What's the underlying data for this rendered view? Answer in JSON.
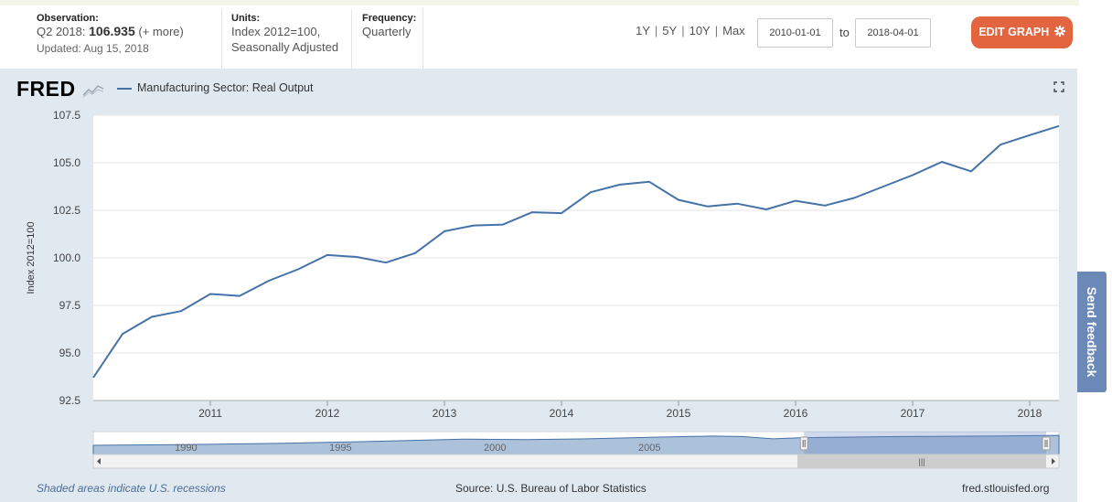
{
  "header": {
    "observation": {
      "label": "Observation:",
      "period": "Q2 2018:",
      "value": "106.935",
      "more": "(+ more)",
      "updated": "Updated: Aug 15, 2018"
    },
    "units": {
      "label": "Units:",
      "line1": "Index 2012=100,",
      "line2": "Seasonally Adjusted"
    },
    "frequency": {
      "label": "Frequency:",
      "value": "Quarterly"
    },
    "ranges": [
      "1Y",
      "5Y",
      "10Y",
      "Max"
    ],
    "date_from": "2010-01-01",
    "date_to_label": "to",
    "date_to": "2018-04-01",
    "edit_label": "EDIT GRAPH",
    "edit_icon": "gear-icon"
  },
  "logo": "FRED",
  "legend_label": "Manufacturing Sector: Real Output",
  "feedback_label": "Send feedback",
  "footer": {
    "left": "Shaded areas indicate U.S. recessions",
    "source": "Source: U.S. Bureau of Labor Statistics",
    "site": "fred.stlouisfed.org"
  },
  "colors": {
    "series": "#4572a7",
    "accent": "#e3653f",
    "panel": "#e1e9f0",
    "feedback": "#6b88b7"
  },
  "chart_data": {
    "type": "line",
    "title": "Manufacturing Sector: Real Output",
    "xlabel": "",
    "ylabel": "Index 2012=100",
    "ylim": [
      92.5,
      107.5
    ],
    "yticks": [
      "92.5",
      "95.0",
      "97.5",
      "100.0",
      "102.5",
      "105.0",
      "107.5"
    ],
    "ytick_values": [
      92.5,
      95.0,
      97.5,
      100.0,
      102.5,
      105.0,
      107.5
    ],
    "xlim": [
      2010.0,
      2018.25
    ],
    "xticks": [
      "2011",
      "2012",
      "2013",
      "2014",
      "2015",
      "2016",
      "2017",
      "2018"
    ],
    "xtick_values": [
      2011,
      2012,
      2013,
      2014,
      2015,
      2016,
      2017,
      2018
    ],
    "series": [
      {
        "name": "Manufacturing Sector: Real Output",
        "x": [
          2010.0,
          2010.25,
          2010.5,
          2010.75,
          2011.0,
          2011.25,
          2011.5,
          2011.75,
          2012.0,
          2012.25,
          2012.5,
          2012.75,
          2013.0,
          2013.25,
          2013.5,
          2013.75,
          2014.0,
          2014.25,
          2014.5,
          2014.75,
          2015.0,
          2015.25,
          2015.5,
          2015.75,
          2016.0,
          2016.25,
          2016.5,
          2016.75,
          2017.0,
          2017.25,
          2017.5,
          2017.75,
          2018.0,
          2018.25
        ],
        "values": [
          93.7,
          96.0,
          96.9,
          97.2,
          98.1,
          98.0,
          98.8,
          99.4,
          100.15,
          100.05,
          99.75,
          100.25,
          101.4,
          101.7,
          101.75,
          102.4,
          102.35,
          103.45,
          103.85,
          104.0,
          103.05,
          102.7,
          102.85,
          102.55,
          103.0,
          102.75,
          103.15,
          103.75,
          104.35,
          105.05,
          104.55,
          105.95,
          106.45,
          106.935
        ]
      }
    ],
    "navigator": {
      "labels": [
        "1990",
        "1995",
        "2000",
        "2005"
      ],
      "label_years": [
        1990,
        1995,
        2000,
        2005
      ],
      "xlim": [
        1987,
        2018.25
      ],
      "selected": [
        2010.0,
        2018.25
      ],
      "x": [
        1987,
        1990,
        1993,
        1996,
        1999,
        2001,
        2003,
        2005,
        2007,
        2008,
        2009,
        2010,
        2013,
        2016,
        2018.25
      ],
      "values": [
        38,
        42,
        48,
        58,
        70,
        68,
        72,
        80,
        86,
        84,
        72,
        78,
        84,
        86,
        90
      ],
      "vmax": 100
    },
    "legend_position": "top-left",
    "grid": true
  }
}
